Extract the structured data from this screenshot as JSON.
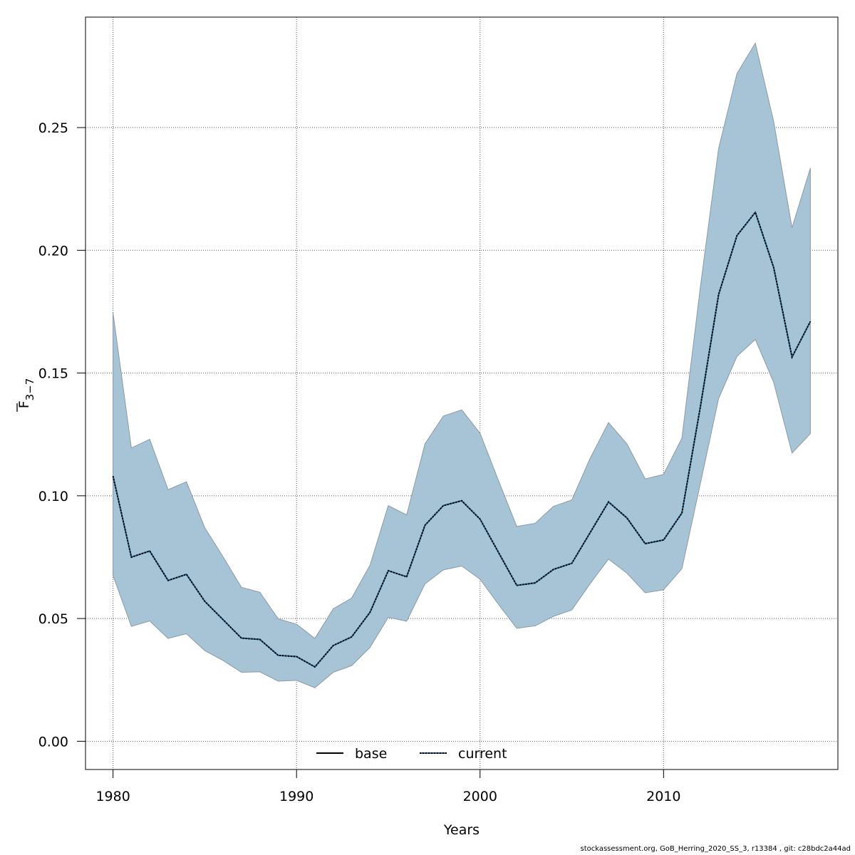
{
  "chart_data": {
    "type": "area",
    "xlabel": "Years",
    "ylabel_main": "F",
    "ylabel_sub": "3−7",
    "xlim": [
      1978.5,
      2019.5
    ],
    "ylim": [
      -0.0115,
      0.295
    ],
    "x_ticks": [
      1980,
      1990,
      2000,
      2010
    ],
    "x_tick_labels": [
      "1980",
      "1990",
      "2000",
      "2010"
    ],
    "y_ticks": [
      0.0,
      0.05,
      0.1,
      0.15,
      0.2,
      0.25
    ],
    "y_tick_labels": [
      "0.00",
      "0.05",
      "0.10",
      "0.15",
      "0.20",
      "0.25"
    ],
    "grid": true,
    "legend_position": "bottom-center",
    "colors": {
      "band_fill": "#a6c4d5",
      "band_edge": "#8a9ba6",
      "current_line": "#1a5f8a",
      "base_line": "#000000",
      "grid": "#555555"
    },
    "x": [
      1980,
      1981,
      1982,
      1983,
      1984,
      1985,
      1986,
      1987,
      1988,
      1989,
      1990,
      1991,
      1992,
      1993,
      1994,
      1995,
      1996,
      1997,
      1998,
      1999,
      2000,
      2001,
      2002,
      2003,
      2004,
      2005,
      2006,
      2007,
      2008,
      2009,
      2010,
      2011,
      2012,
      2013,
      2014,
      2015,
      2016,
      2017,
      2018
    ],
    "series": [
      {
        "name": "base",
        "style": "solid",
        "values": [
          0.108,
          0.075,
          0.0775,
          0.0655,
          0.068,
          0.057,
          0.0495,
          0.042,
          0.0415,
          0.035,
          0.0345,
          0.0303,
          0.039,
          0.0425,
          0.0525,
          0.0695,
          0.067,
          0.088,
          0.096,
          0.098,
          0.0905,
          0.077,
          0.0635,
          0.0645,
          0.07,
          0.0725,
          0.085,
          0.0975,
          0.091,
          0.0805,
          0.082,
          0.093,
          0.136,
          0.182,
          0.206,
          0.2155,
          0.193,
          0.1565,
          0.171
        ]
      },
      {
        "name": "current",
        "style": "dotted",
        "values": [
          0.108,
          0.075,
          0.0775,
          0.0655,
          0.068,
          0.057,
          0.0495,
          0.042,
          0.0415,
          0.035,
          0.0345,
          0.0303,
          0.039,
          0.0425,
          0.0525,
          0.0695,
          0.067,
          0.088,
          0.096,
          0.098,
          0.0905,
          0.077,
          0.0635,
          0.0645,
          0.07,
          0.0725,
          0.085,
          0.0975,
          0.091,
          0.0805,
          0.082,
          0.093,
          0.136,
          0.182,
          0.206,
          0.2155,
          0.193,
          0.1565,
          0.171
        ]
      }
    ],
    "band": {
      "upper": [
        0.1745,
        0.1195,
        0.123,
        0.1025,
        0.1057,
        0.087,
        0.0751,
        0.0627,
        0.0607,
        0.0499,
        0.0477,
        0.0419,
        0.054,
        0.0583,
        0.0717,
        0.096,
        0.0922,
        0.1212,
        0.1325,
        0.135,
        0.1255,
        0.1063,
        0.0875,
        0.0888,
        0.0957,
        0.0983,
        0.1153,
        0.1298,
        0.1212,
        0.1069,
        0.1087,
        0.1235,
        0.1848,
        0.2415,
        0.272,
        0.2844,
        0.2525,
        0.2092,
        0.2335
      ],
      "lower": [
        0.0675,
        0.0468,
        0.049,
        0.0419,
        0.0438,
        0.0369,
        0.0329,
        0.0281,
        0.0283,
        0.0245,
        0.0248,
        0.0218,
        0.0281,
        0.0308,
        0.0382,
        0.0505,
        0.0489,
        0.0641,
        0.0698,
        0.0714,
        0.066,
        0.0558,
        0.046,
        0.047,
        0.0509,
        0.0535,
        0.0642,
        0.0742,
        0.0685,
        0.0605,
        0.0617,
        0.0703,
        0.1048,
        0.1396,
        0.1568,
        0.1637,
        0.1462,
        0.1174,
        0.1253
      ]
    }
  },
  "footer_text": "stockassessment.org, GoB_Herring_2020_SS_3, r13384 , git: c28bdc2a44ad"
}
